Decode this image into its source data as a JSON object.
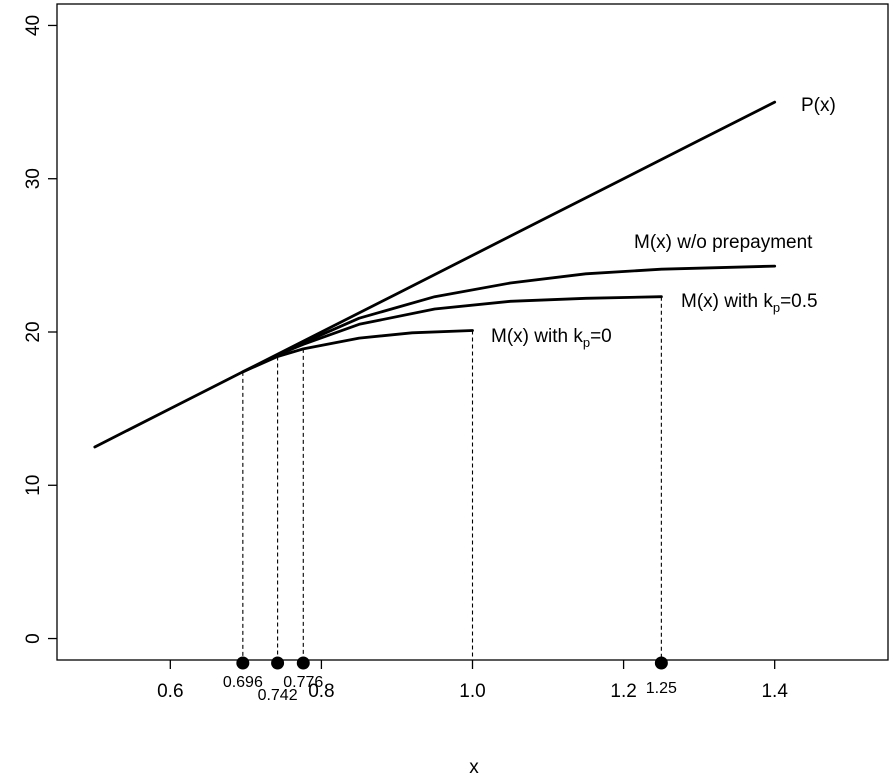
{
  "chart_data": {
    "type": "line",
    "title": "",
    "xlabel": "x",
    "ylabel": "",
    "xlim": [
      0.45,
      1.55
    ],
    "ylim": [
      -1.4,
      41.4
    ],
    "x_ticks": [
      0.6,
      0.8,
      1.0,
      1.2,
      1.4
    ],
    "x_tick_labels": [
      "0.6",
      "0.8",
      "1.0",
      "1.2",
      "1.4"
    ],
    "y_ticks": [
      0,
      10,
      20,
      30,
      40
    ],
    "y_tick_labels": [
      "0",
      "10",
      "20",
      "30",
      "40"
    ],
    "grid": false,
    "series": [
      {
        "name": "P(x)",
        "x": [
          0.5,
          0.6,
          0.7,
          0.8,
          0.9,
          1.0,
          1.1,
          1.2,
          1.3,
          1.4
        ],
        "y": [
          12.5,
          15.0,
          17.5,
          20.0,
          22.5,
          25.0,
          27.5,
          30.0,
          32.5,
          35.0
        ]
      },
      {
        "name": "M(x) w/o prepayment",
        "x": [
          0.696,
          0.742,
          0.776,
          0.85,
          0.95,
          1.05,
          1.15,
          1.25,
          1.4
        ],
        "y": [
          17.4,
          18.5,
          19.3,
          20.9,
          22.3,
          23.2,
          23.8,
          24.1,
          24.3
        ]
      },
      {
        "name": "M(x) with k_p=0.5",
        "x": [
          0.696,
          0.742,
          0.776,
          0.85,
          0.95,
          1.05,
          1.15,
          1.25
        ],
        "y": [
          17.4,
          18.5,
          19.2,
          20.5,
          21.5,
          22.0,
          22.2,
          22.3
        ]
      },
      {
        "name": "M(x) with k_p=0",
        "x": [
          0.696,
          0.742,
          0.776,
          0.85,
          0.92,
          1.0
        ],
        "y": [
          17.4,
          18.4,
          18.9,
          19.6,
          19.95,
          20.1
        ]
      }
    ],
    "curve_labels": {
      "p": "P(x)",
      "m_no_prepay": "M(x) w/o prepayment",
      "m_kp05_prefix": "M(x) with k",
      "m_kp05_sub": "p",
      "m_kp05_suffix": "=0.5",
      "m_kp0_prefix": "M(x) with k",
      "m_kp0_sub": "p",
      "m_kp0_suffix": "=0"
    },
    "markers": [
      {
        "x": 0.696,
        "y_top": 17.4,
        "label": "0.696"
      },
      {
        "x": 0.742,
        "y_top": 18.4,
        "label": "0.742"
      },
      {
        "x": 0.776,
        "y_top": 18.9,
        "label": "0.776"
      },
      {
        "x": 1.0,
        "y_top": 20.1,
        "label": ""
      },
      {
        "x": 1.25,
        "y_top": 22.3,
        "label": "1.25"
      }
    ],
    "colors": {
      "line": "#000000",
      "background": "#ffffff"
    }
  }
}
